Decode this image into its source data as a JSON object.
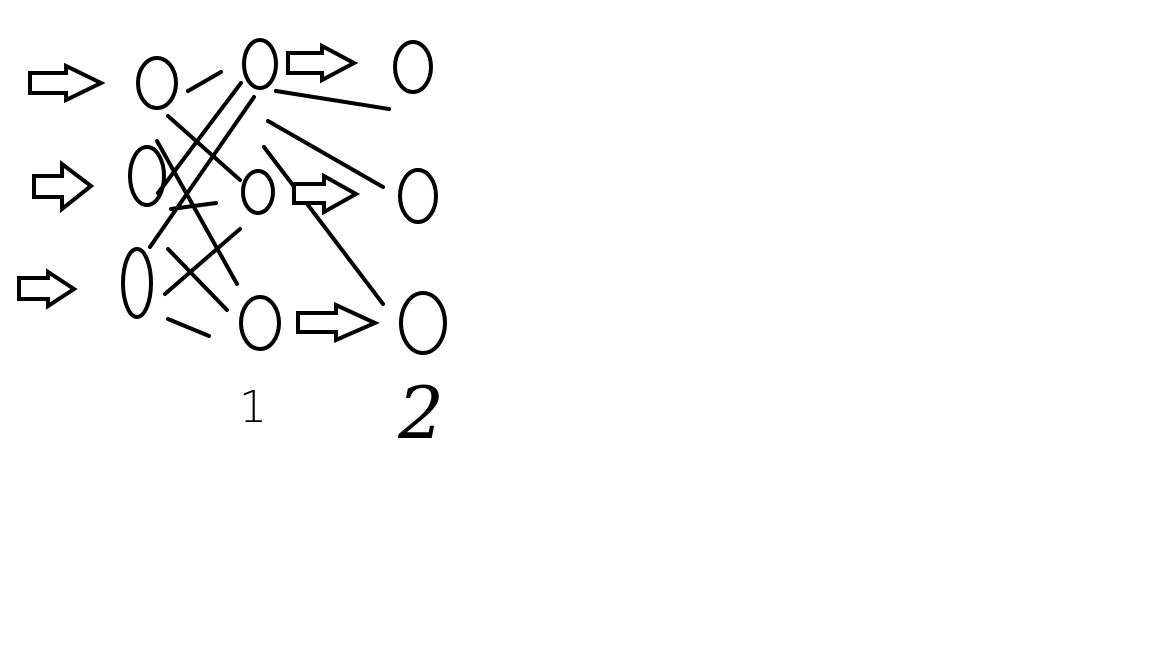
{
  "diagram": {
    "stroke_color": "#000000",
    "background_color": "#ffffff",
    "layers": [
      {
        "id": "input",
        "node_count": 3,
        "label": ""
      },
      {
        "id": "hidden",
        "node_count": 3,
        "label": "1"
      },
      {
        "id": "output",
        "node_count": 3,
        "label": "2"
      }
    ],
    "input_arrow_count": 3,
    "hidden_to_output_arrow_count": 3,
    "connections": [
      {
        "from": "input-0",
        "to": "hidden-0"
      },
      {
        "from": "input-0",
        "to": "hidden-1"
      },
      {
        "from": "input-1",
        "to": "hidden-0"
      },
      {
        "from": "input-1",
        "to": "hidden-1"
      },
      {
        "from": "input-1",
        "to": "hidden-2"
      },
      {
        "from": "input-2",
        "to": "hidden-0"
      },
      {
        "from": "input-2",
        "to": "hidden-1"
      },
      {
        "from": "input-2",
        "to": "hidden-2"
      },
      {
        "from": "hidden-0",
        "to": "output-0"
      },
      {
        "from": "hidden-0",
        "to": "output-1"
      },
      {
        "from": "hidden-0",
        "to": "output-2"
      }
    ]
  }
}
